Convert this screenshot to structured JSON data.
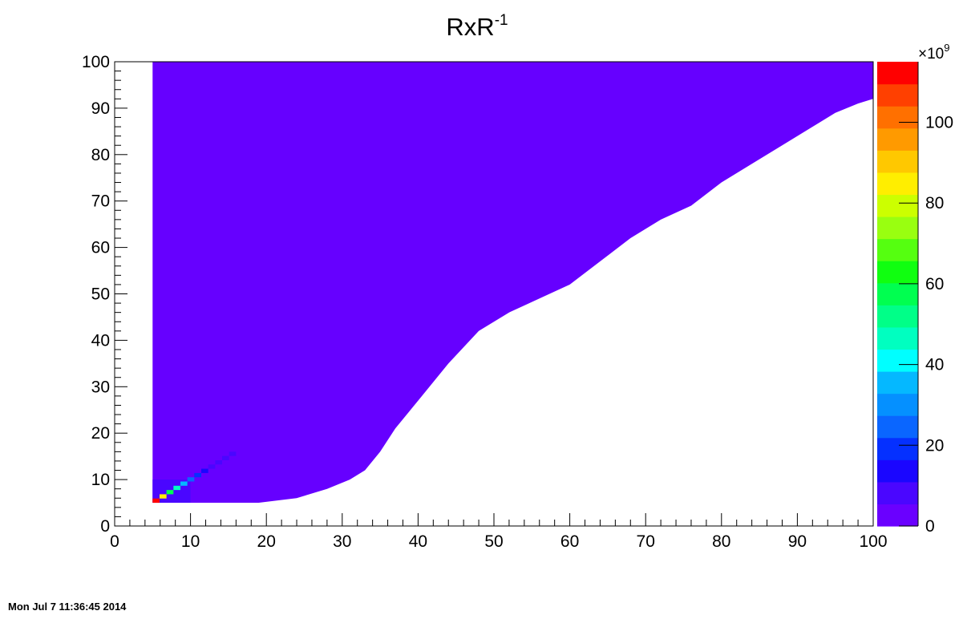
{
  "chart_data": {
    "type": "heatmap",
    "title": "RxR",
    "title_superscript": "-1",
    "xlabel": "",
    "ylabel": "",
    "xlim": [
      0,
      100
    ],
    "ylim": [
      0,
      100
    ],
    "x_tick_labels": [
      "0",
      "10",
      "20",
      "30",
      "40",
      "50",
      "60",
      "70",
      "80",
      "90",
      "100"
    ],
    "y_tick_labels": [
      "0",
      "10",
      "20",
      "30",
      "40",
      "50",
      "60",
      "70",
      "80",
      "90",
      "100"
    ],
    "colorbar": {
      "range": [
        0,
        115
      ],
      "multiplier_label": "×10",
      "multiplier_exponent": "9",
      "tick_values": [
        0,
        20,
        40,
        60,
        80,
        100
      ],
      "tick_labels": [
        "0",
        "20",
        "40",
        "60",
        "80",
        "100"
      ],
      "colors": [
        "#6a00ff",
        "#4a06ff",
        "#1a06ff",
        "#0530ff",
        "#0a66ff",
        "#0590ff",
        "#05b8ff",
        "#00ffff",
        "#00ffc0",
        "#00ff88",
        "#00ff50",
        "#10ff10",
        "#55ff10",
        "#99ff10",
        "#ccff00",
        "#ffee00",
        "#ffc800",
        "#ff9a00",
        "#ff7000",
        "#ff4000",
        "#ff0000"
      ]
    },
    "grid": false,
    "fill_color": "#6600ff",
    "region": {
      "x_min": 5,
      "x_max": 100,
      "y_min": 5,
      "y_max": 100,
      "lower_boundary": [
        [
          5,
          5
        ],
        [
          19,
          5
        ],
        [
          24,
          6
        ],
        [
          28,
          8
        ],
        [
          31,
          10
        ],
        [
          33,
          12
        ],
        [
          35,
          16
        ],
        [
          37,
          21
        ],
        [
          40,
          27
        ],
        [
          44,
          35
        ],
        [
          48,
          42
        ],
        [
          52,
          46
        ],
        [
          56,
          49
        ],
        [
          60,
          52
        ],
        [
          64,
          57
        ],
        [
          68,
          62
        ],
        [
          72,
          66
        ],
        [
          76,
          69
        ],
        [
          80,
          74
        ],
        [
          84,
          78
        ],
        [
          88,
          82
        ],
        [
          92,
          86
        ],
        [
          95,
          89
        ],
        [
          98,
          91
        ],
        [
          100,
          92
        ]
      ]
    },
    "lower_region": {
      "x_min": 5,
      "x_max": 10,
      "y_min": 5,
      "y_max": 10,
      "value": 10
    },
    "diagonal_band": {
      "x_from": 5,
      "x_to": 16,
      "values": [
        115,
        85,
        60,
        45,
        35,
        25,
        20,
        15,
        10,
        10,
        10,
        10
      ]
    }
  },
  "footer": {
    "timestamp": "Mon Jul  7 11:36:45 2014"
  }
}
